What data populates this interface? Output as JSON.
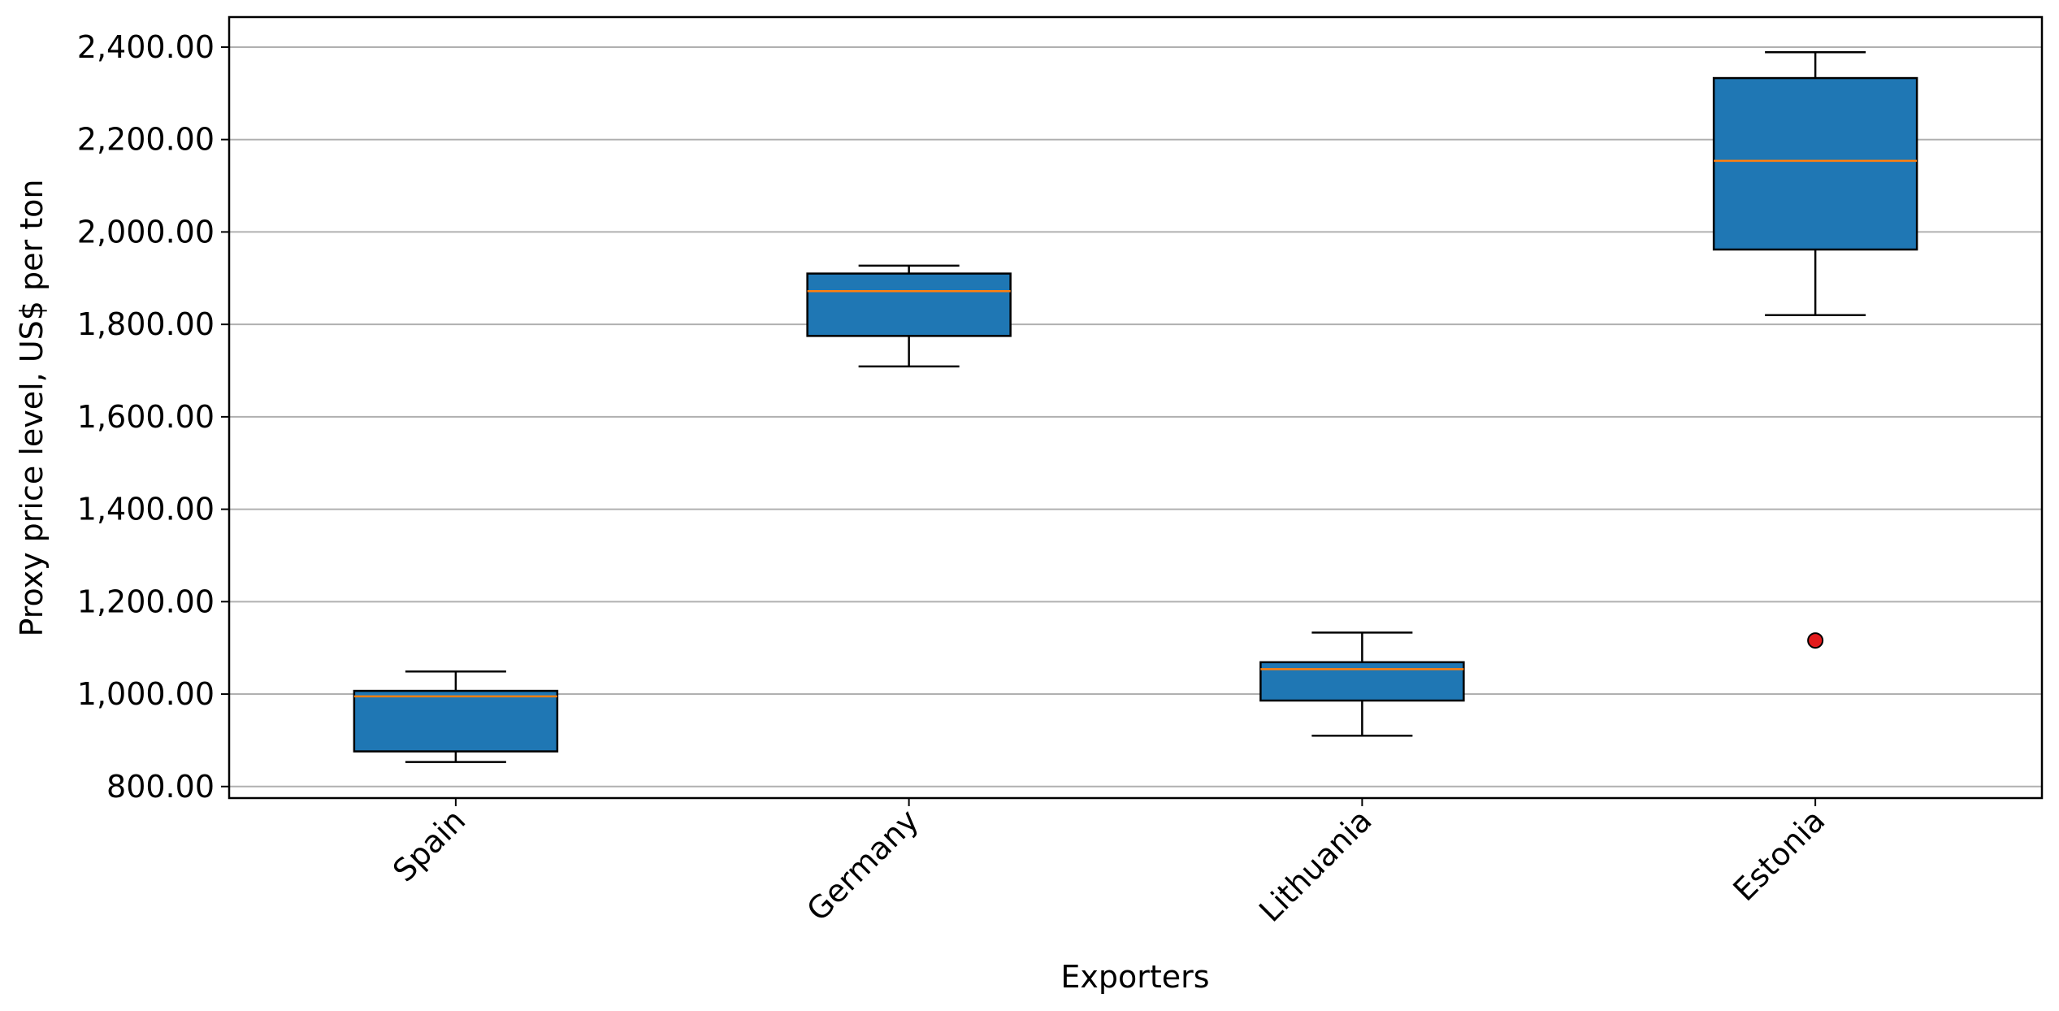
{
  "chart_data": {
    "type": "box",
    "title": "",
    "xlabel": "Exporters",
    "ylabel": "Proxy price level, US$ per ton",
    "ylim": [
      775,
      2465
    ],
    "yticks": [
      800,
      1000,
      1200,
      1400,
      1600,
      1800,
      2000,
      2200,
      2400
    ],
    "ytick_labels": [
      "800.00",
      "1,000.00",
      "1,200.00",
      "1,400.00",
      "1,600.00",
      "1,800.00",
      "2,000.00",
      "2,200.00",
      "2,400.00"
    ],
    "grid": "horizontal",
    "categories": [
      "Spain",
      "Germany",
      "Lithuania",
      "Estonia"
    ],
    "boxes": [
      {
        "category": "Spain",
        "whisker_low": 853,
        "q1": 876,
        "median": 995,
        "q3": 1007,
        "whisker_high": 1049,
        "outliers": []
      },
      {
        "category": "Germany",
        "whisker_low": 1709,
        "q1": 1775,
        "median": 1872,
        "q3": 1910,
        "whisker_high": 1927,
        "outliers": []
      },
      {
        "category": "Lithuania",
        "whisker_low": 910,
        "q1": 986,
        "median": 1054,
        "q3": 1069,
        "whisker_high": 1133,
        "outliers": []
      },
      {
        "category": "Estonia",
        "whisker_low": 1820,
        "q1": 1962,
        "median": 2154,
        "q3": 2333,
        "whisker_high": 2389,
        "outliers": [
          1116
        ]
      }
    ],
    "colors": {
      "box_fill": "#1f77b4",
      "median": "#ff7f0e",
      "outlier": "#e31a1c",
      "grid": "#b0b0b0"
    }
  }
}
